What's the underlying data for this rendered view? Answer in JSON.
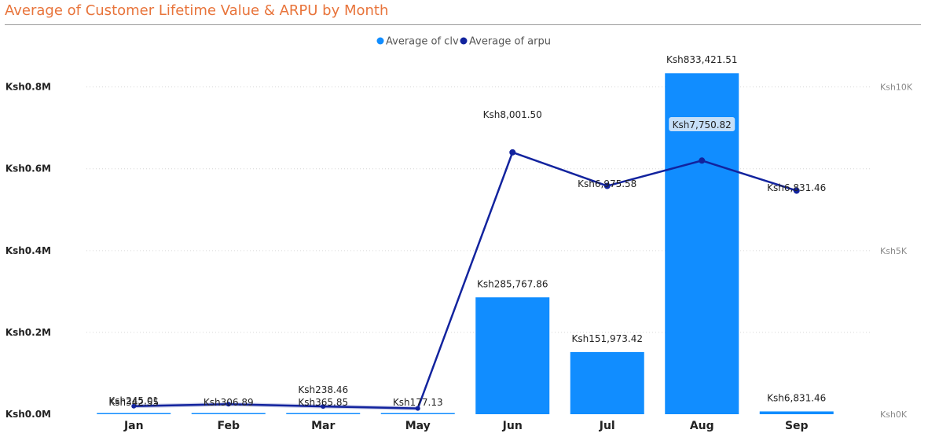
{
  "title": "Average of Customer Lifetime Value & ARPU by Month",
  "colors": {
    "title": "#E8743B",
    "clv": "#118DFF",
    "arpu": "#12239E",
    "highlight": "#C6DFF8"
  },
  "chart_data": {
    "type": "bar",
    "title": "Average of Customer Lifetime Value & ARPU by Month",
    "categories": [
      "Jan",
      "Feb",
      "Mar",
      "May",
      "Jun",
      "Jul",
      "Aug",
      "Sep"
    ],
    "legend_position": "top-center",
    "grid": true,
    "series": [
      {
        "name": "Average of clv",
        "type": "bar",
        "axis": "left",
        "values": [
          342.55,
          306.89,
          365.85,
          177.13,
          285767.86,
          151973.42,
          833421.51,
          6831.46
        ],
        "labels": [
          "Ksh342.55",
          "Ksh306.89",
          "Ksh365.85",
          "Ksh177.13",
          "Ksh285,767.86",
          "Ksh151,973.42",
          "Ksh833,421.51",
          "Ksh6,831.46"
        ]
      },
      {
        "name": "Average of arpu",
        "type": "line",
        "axis": "right",
        "values": [
          245.01,
          306.89,
          238.46,
          177.13,
          8001.5,
          6975.58,
          7750.82,
          6831.46
        ],
        "labels": [
          "Ksh245.01",
          "",
          "Ksh238.46",
          "",
          "Ksh8,001.50",
          "Ksh6,975.58",
          "Ksh7,750.82",
          "Ksh6,831.46"
        ]
      }
    ],
    "y_left": {
      "range": [
        0,
        880000
      ],
      "ticks": [
        0,
        200000,
        400000,
        600000,
        800000
      ],
      "tick_labels": [
        "Ksh0.0M",
        "Ksh0.2M",
        "Ksh0.4M",
        "Ksh0.6M",
        "Ksh0.8M"
      ]
    },
    "y_right": {
      "range": [
        0,
        11000
      ],
      "ticks": [
        0,
        5000,
        10000
      ],
      "tick_labels": [
        "Ksh0K",
        "Ksh5K",
        "Ksh10K"
      ]
    }
  }
}
